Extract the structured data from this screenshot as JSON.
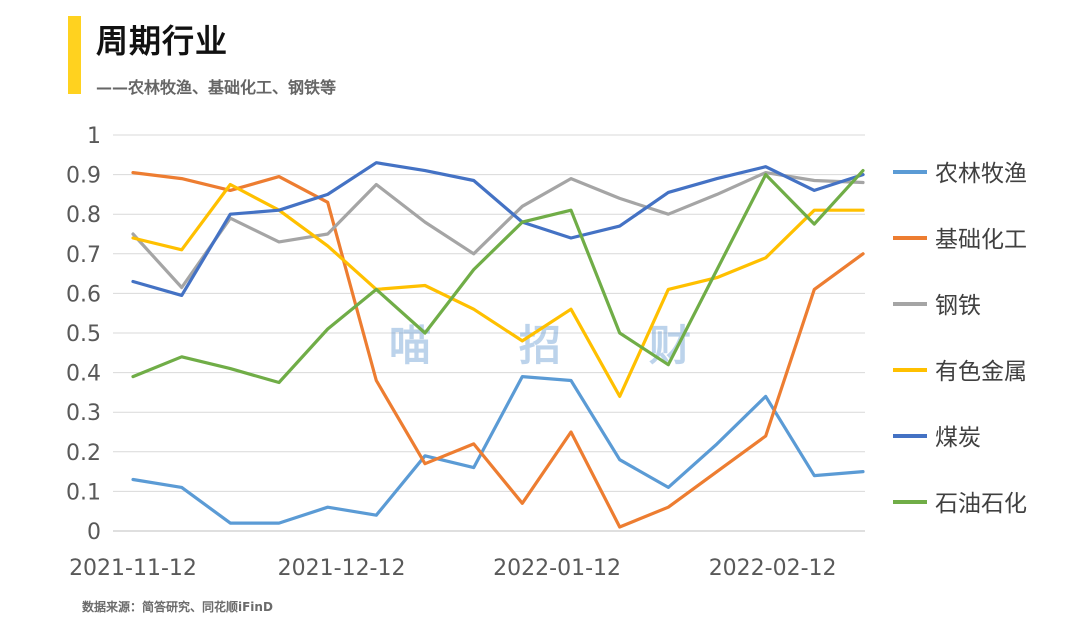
{
  "header": {
    "title": "周期行业",
    "subtitle": "——农林牧渔、基础化工、钢铁等"
  },
  "footer": {
    "source": "数据来源：简答研究、同花顺iFinD"
  },
  "watermark": [
    "喵",
    "招",
    "财"
  ],
  "chart_data": {
    "type": "line",
    "x": [
      "2021-11-12",
      "2021-11-19",
      "2021-11-26",
      "2021-12-03",
      "2021-12-10",
      "2021-12-17",
      "2021-12-24",
      "2021-12-31",
      "2022-01-07",
      "2022-01-14",
      "2022-01-21",
      "2022-01-28",
      "2022-02-04",
      "2022-02-11",
      "2022-02-18",
      "2022-02-25"
    ],
    "x_tick_labels": [
      "2021-11-12",
      "2021-12-12",
      "2022-01-12",
      "2022-02-12"
    ],
    "y_ticks": [
      "0",
      "0.1",
      "0.2",
      "0.3",
      "0.4",
      "0.5",
      "0.6",
      "0.7",
      "0.8",
      "0.9",
      "1"
    ],
    "ylim": [
      0,
      1
    ],
    "grid": true,
    "legend_position": "right",
    "series": [
      {
        "name": "农林牧渔",
        "color": "#5B9BD5",
        "values": [
          0.13,
          0.11,
          0.02,
          0.02,
          0.06,
          0.04,
          0.19,
          0.16,
          0.39,
          0.38,
          0.18,
          0.11,
          0.22,
          0.34,
          0.14,
          0.15
        ]
      },
      {
        "name": "基础化工",
        "color": "#ED7D31",
        "values": [
          0.905,
          0.89,
          0.86,
          0.895,
          0.83,
          0.38,
          0.17,
          0.22,
          0.07,
          0.25,
          0.01,
          0.06,
          0.15,
          0.24,
          0.61,
          0.7
        ]
      },
      {
        "name": "钢铁",
        "color": "#A5A5A5",
        "values": [
          0.75,
          0.615,
          0.79,
          0.73,
          0.75,
          0.875,
          0.78,
          0.7,
          0.82,
          0.89,
          0.84,
          0.8,
          0.85,
          0.905,
          0.885,
          0.88
        ]
      },
      {
        "name": "有色金属",
        "color": "#FFC000",
        "values": [
          0.74,
          0.71,
          0.875,
          0.81,
          0.72,
          0.61,
          0.62,
          0.56,
          0.48,
          0.56,
          0.34,
          0.61,
          0.64,
          0.69,
          0.81,
          0.81
        ]
      },
      {
        "name": "煤炭",
        "color": "#4472C4",
        "values": [
          0.63,
          0.595,
          0.8,
          0.81,
          0.85,
          0.93,
          0.91,
          0.885,
          0.78,
          0.74,
          0.77,
          0.855,
          0.89,
          0.92,
          0.86,
          0.9
        ]
      },
      {
        "name": "石油石化",
        "color": "#70AD47",
        "values": [
          0.39,
          0.44,
          0.41,
          0.375,
          0.51,
          0.61,
          0.5,
          0.66,
          0.78,
          0.81,
          0.5,
          0.42,
          0.66,
          0.9,
          0.775,
          0.91
        ]
      }
    ]
  }
}
